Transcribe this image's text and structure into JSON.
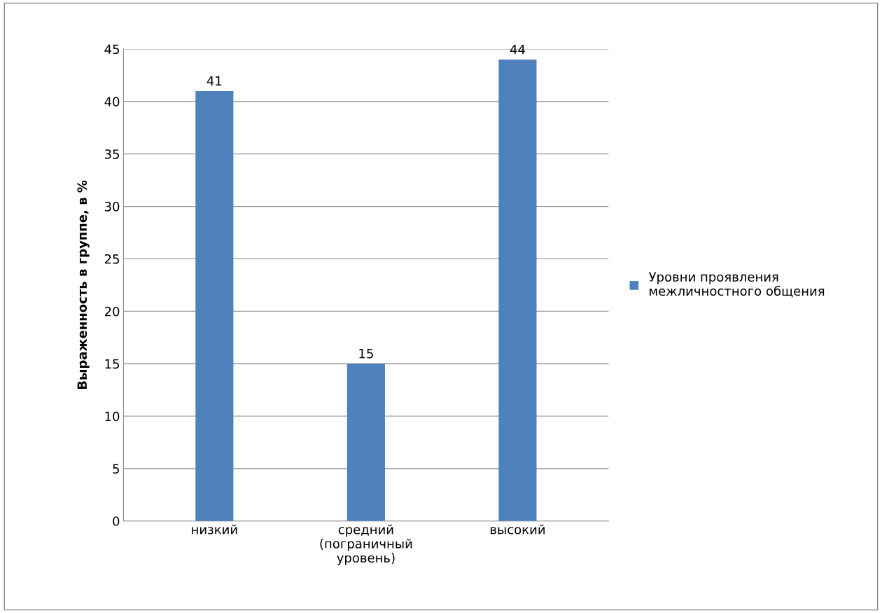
{
  "chart_data": {
    "type": "bar",
    "ylabel": "Выраженность в группе, в %",
    "categories": [
      "низкий",
      "средний\n(пограничный\nуровень)",
      "высокий"
    ],
    "series": [
      {
        "name": "Уровни проявления\nмежличностного общения",
        "color": "#4f81bd",
        "values": [
          41,
          15,
          44
        ]
      }
    ],
    "ylim": [
      0,
      45
    ],
    "yticks": [
      0,
      5,
      10,
      15,
      20,
      25,
      30,
      35,
      40,
      45
    ],
    "grid": "y",
    "legend": "right",
    "data_labels": true
  }
}
